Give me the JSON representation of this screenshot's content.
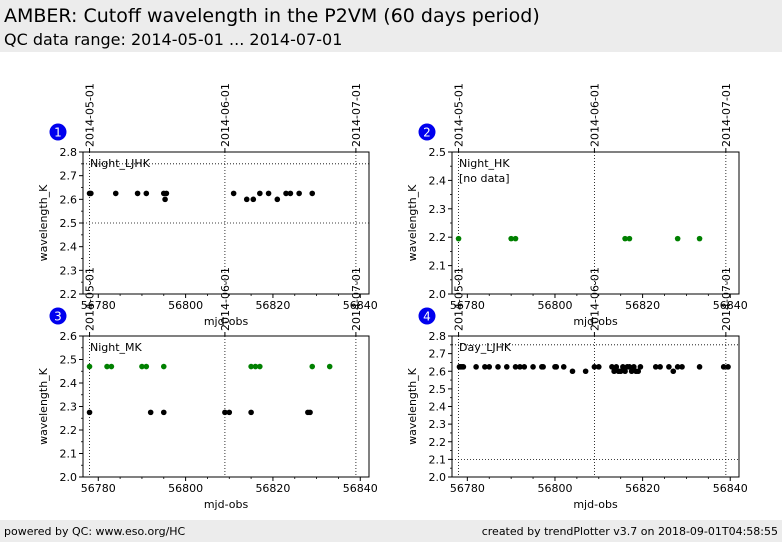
{
  "header": {
    "title": "AMBER: Cutoff wavelength in the P2VM (60 days period)",
    "subtitle": "QC data range: 2014-05-01 ... 2014-07-01"
  },
  "footer": {
    "left": "powered by QC: www.eso.org/HC",
    "right": "created by trendPlotter v3.7 on 2018-09-01T04:58:55"
  },
  "colors": {
    "black": "#000000",
    "green": "#008000",
    "badge": "#0000ee",
    "header_bg": "#ececec"
  },
  "chart_data": [
    {
      "type": "scatter",
      "badge": "1",
      "label": "Night_LJHK",
      "xlabel": "mjd-obs",
      "ylabel": "wavelength_K",
      "xlim": [
        56776.5,
        56842
      ],
      "ylim": [
        2.2,
        2.8
      ],
      "xticks": [
        56780,
        56800,
        56820,
        56840
      ],
      "yticks": [
        2.2,
        2.3,
        2.4,
        2.5,
        2.6,
        2.7,
        2.8
      ],
      "date_lines": [
        {
          "x": 56778,
          "label": "2014-05-01"
        },
        {
          "x": 56809,
          "label": "2014-06-01"
        },
        {
          "x": 56839,
          "label": "2014-07-01"
        }
      ],
      "hlines": [
        2.5,
        2.75
      ],
      "series": [
        {
          "color": "#000000",
          "points": [
            [
              56778.0,
              2.625
            ],
            [
              56778.3,
              2.625
            ],
            [
              56784,
              2.625
            ],
            [
              56789,
              2.625
            ],
            [
              56791,
              2.625
            ],
            [
              56795,
              2.625
            ],
            [
              56795.3,
              2.6
            ],
            [
              56795.6,
              2.625
            ],
            [
              56811,
              2.625
            ],
            [
              56814,
              2.6
            ],
            [
              56815.5,
              2.6
            ],
            [
              56817,
              2.625
            ],
            [
              56819,
              2.625
            ],
            [
              56821,
              2.6
            ],
            [
              56823,
              2.625
            ],
            [
              56824,
              2.625
            ],
            [
              56826,
              2.625
            ],
            [
              56829,
              2.625
            ]
          ]
        }
      ]
    },
    {
      "type": "scatter",
      "badge": "2",
      "label": "Night_HK",
      "note": "[no data]",
      "xlabel": "mjd-obs",
      "ylabel": "wavelength_K",
      "xlim": [
        56776.5,
        56842
      ],
      "ylim": [
        2.0,
        2.5
      ],
      "xticks": [
        56780,
        56800,
        56820,
        56840
      ],
      "yticks": [
        2.0,
        2.1,
        2.2,
        2.3,
        2.4,
        2.5
      ],
      "date_lines": [
        {
          "x": 56778,
          "label": "2014-05-01"
        },
        {
          "x": 56809,
          "label": "2014-06-01"
        },
        {
          "x": 56839,
          "label": "2014-07-01"
        }
      ],
      "hlines": [],
      "series": [
        {
          "color": "#008000",
          "points": [
            [
              56778,
              2.195
            ],
            [
              56790,
              2.195
            ],
            [
              56791,
              2.195
            ],
            [
              56816,
              2.195
            ],
            [
              56817,
              2.195
            ],
            [
              56828,
              2.195
            ],
            [
              56833,
              2.195
            ]
          ]
        }
      ]
    },
    {
      "type": "scatter",
      "badge": "3",
      "label": "Night_MK",
      "xlabel": "mjd-obs",
      "ylabel": "wavelength_K",
      "xlim": [
        56776.5,
        56842
      ],
      "ylim": [
        2.0,
        2.6
      ],
      "xticks": [
        56780,
        56800,
        56820,
        56840
      ],
      "yticks": [
        2.0,
        2.1,
        2.2,
        2.3,
        2.4,
        2.5,
        2.6
      ],
      "date_lines": [
        {
          "x": 56778,
          "label": "2014-05-01"
        },
        {
          "x": 56809,
          "label": "2014-06-01"
        },
        {
          "x": 56839,
          "label": "2014-07-01"
        }
      ],
      "hlines": [],
      "series": [
        {
          "color": "#008000",
          "points": [
            [
              56778,
              2.47
            ],
            [
              56782,
              2.47
            ],
            [
              56783,
              2.47
            ],
            [
              56790,
              2.47
            ],
            [
              56791,
              2.47
            ],
            [
              56795,
              2.47
            ],
            [
              56815,
              2.47
            ],
            [
              56816,
              2.47
            ],
            [
              56817,
              2.47
            ],
            [
              56829,
              2.47
            ],
            [
              56833,
              2.47
            ]
          ]
        },
        {
          "color": "#000000",
          "points": [
            [
              56778,
              2.275
            ],
            [
              56792,
              2.275
            ],
            [
              56795,
              2.275
            ],
            [
              56809,
              2.275
            ],
            [
              56810,
              2.275
            ],
            [
              56815,
              2.275
            ],
            [
              56828,
              2.275
            ],
            [
              56828.5,
              2.275
            ]
          ]
        }
      ]
    },
    {
      "type": "scatter",
      "badge": "4",
      "label": "Day_LJHK",
      "xlabel": "mjd-obs",
      "ylabel": "wavelength_K",
      "xlim": [
        56776.5,
        56842
      ],
      "ylim": [
        2.0,
        2.8
      ],
      "xticks": [
        56780,
        56800,
        56820,
        56840
      ],
      "yticks": [
        2.0,
        2.1,
        2.2,
        2.3,
        2.4,
        2.5,
        2.6,
        2.7,
        2.8
      ],
      "date_lines": [
        {
          "x": 56778,
          "label": "2014-05-01"
        },
        {
          "x": 56809,
          "label": "2014-06-01"
        },
        {
          "x": 56839,
          "label": "2014-07-01"
        }
      ],
      "hlines": [
        2.1,
        2.75
      ],
      "series": [
        {
          "color": "#000000",
          "points": [
            [
              56778.2,
              2.625
            ],
            [
              56778.5,
              2.625
            ],
            [
              56778.8,
              2.625
            ],
            [
              56779.1,
              2.625
            ],
            [
              56782,
              2.625
            ],
            [
              56784,
              2.625
            ],
            [
              56785,
              2.625
            ],
            [
              56787,
              2.625
            ],
            [
              56789,
              2.625
            ],
            [
              56791,
              2.625
            ],
            [
              56792,
              2.625
            ],
            [
              56793,
              2.625
            ],
            [
              56795,
              2.625
            ],
            [
              56797,
              2.625
            ],
            [
              56797.3,
              2.625
            ],
            [
              56800,
              2.625
            ],
            [
              56800.3,
              2.625
            ],
            [
              56802,
              2.625
            ],
            [
              56804,
              2.6
            ],
            [
              56807,
              2.6
            ],
            [
              56809,
              2.625
            ],
            [
              56810,
              2.625
            ],
            [
              56813,
              2.625
            ],
            [
              56813.5,
              2.6
            ],
            [
              56814,
              2.625
            ],
            [
              56814.5,
              2.6
            ],
            [
              56815,
              2.6
            ],
            [
              56815.5,
              2.625
            ],
            [
              56816,
              2.6
            ],
            [
              56816.5,
              2.625
            ],
            [
              56817,
              2.625
            ],
            [
              56817.5,
              2.6
            ],
            [
              56818,
              2.625
            ],
            [
              56818.5,
              2.6
            ],
            [
              56819,
              2.6
            ],
            [
              56819.5,
              2.625
            ],
            [
              56823,
              2.625
            ],
            [
              56824,
              2.625
            ],
            [
              56826,
              2.625
            ],
            [
              56827,
              2.6
            ],
            [
              56828,
              2.625
            ],
            [
              56829,
              2.625
            ],
            [
              56833,
              2.625
            ],
            [
              56838.5,
              2.625
            ],
            [
              56839.5,
              2.625
            ]
          ]
        }
      ]
    }
  ]
}
